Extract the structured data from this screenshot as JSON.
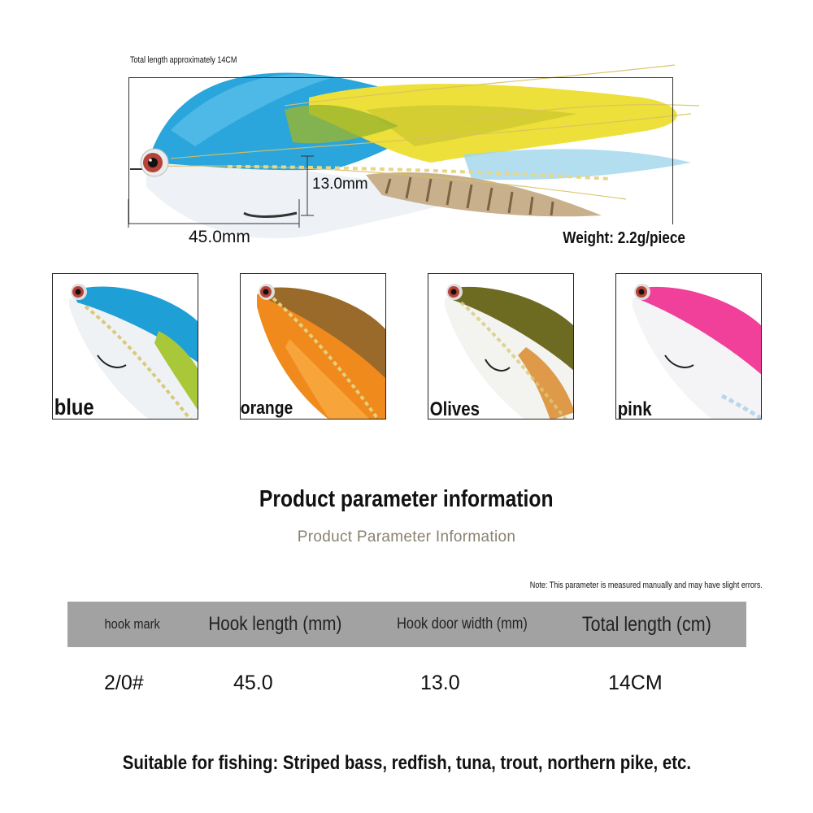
{
  "hero": {
    "total_length_label": "Total length approximately 14CM",
    "hook_gap_label": "13.0mm",
    "hook_length_label": "45.0mm",
    "weight_label": "Weight: 2.2g/piece"
  },
  "variants": [
    {
      "label": "blue",
      "colors": {
        "top": "#1e9fd6",
        "mid": "#a8c83a",
        "belly": "#f1f4f6"
      }
    },
    {
      "label": "orange",
      "colors": {
        "top": "#9a6a2a",
        "mid": "#f08a1c",
        "belly": "#f7a43a"
      }
    },
    {
      "label": "Olives",
      "colors": {
        "top": "#6d6a22",
        "mid": "#8c7a2c",
        "belly": "#f3f3f0"
      }
    },
    {
      "label": "pink",
      "colors": {
        "top": "#f0409a",
        "mid": "#f36cb0",
        "belly": "#f4f4f6"
      }
    }
  ],
  "headings": {
    "title": "Product parameter information",
    "subtitle": "Product Parameter Information",
    "note": "Note: This parameter is measured manually and may have slight errors."
  },
  "table": {
    "headers": [
      "hook mark",
      "Hook length (mm)",
      "Hook door width (mm)",
      "Total length (cm)"
    ],
    "row": [
      "2/0#",
      "45.0",
      "13.0",
      "14CM"
    ]
  },
  "footer": {
    "suitable": "Suitable for fishing: Striped bass, redfish, tuna, trout, northern pike, etc."
  }
}
